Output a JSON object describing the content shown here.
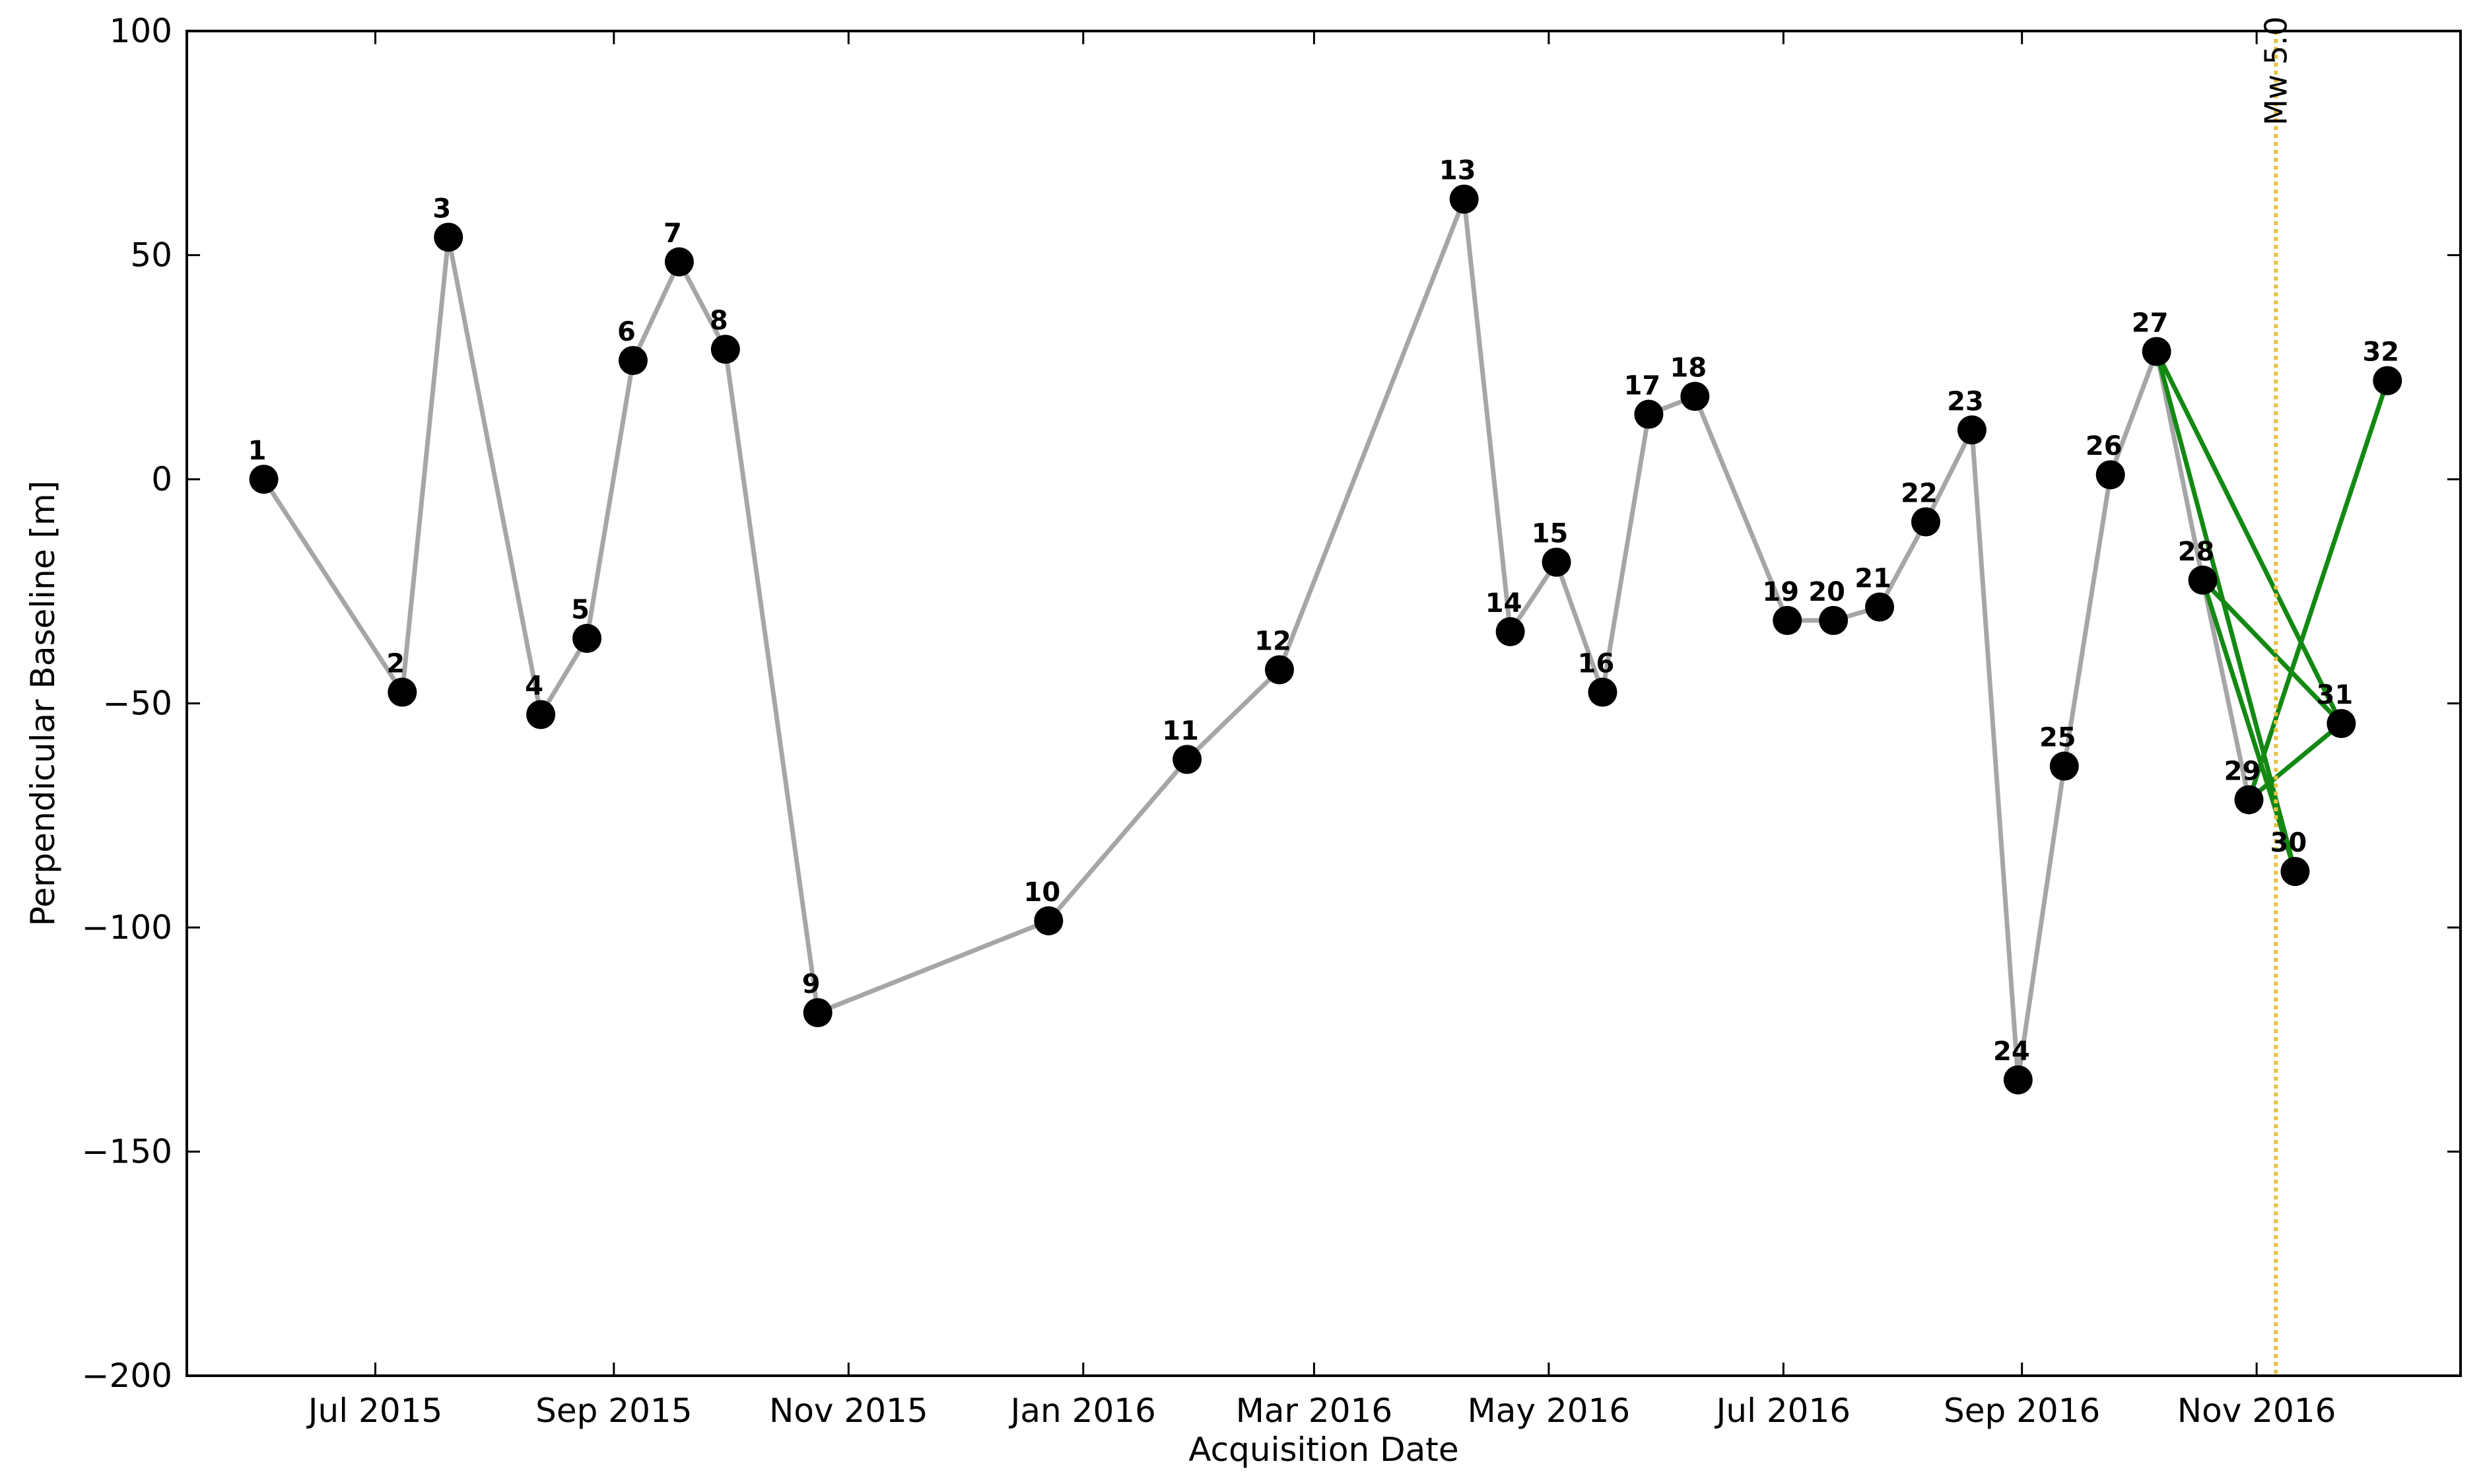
{
  "chart_data": {
    "type": "scatter",
    "title": "",
    "xlabel": "Acquisition Date",
    "ylabel": "Perpendicular Baseline [m]",
    "xlim": [
      "2015-05-13",
      "2016-12-24"
    ],
    "ylim": [
      -200,
      100
    ],
    "yticks": [
      100,
      50,
      0,
      -50,
      -100,
      -150,
      -200
    ],
    "ytick_labels": [
      "100",
      "50",
      "0",
      "−50",
      "−100",
      "−150",
      "−200"
    ],
    "xticks": [
      "2015-07-01",
      "2015-09-01",
      "2015-11-01",
      "2016-01-01",
      "2016-03-01",
      "2016-05-01",
      "2016-07-01",
      "2016-09-01",
      "2016-11-01"
    ],
    "xtick_labels": [
      "Jul 2015",
      "Sep 2015",
      "Nov 2015",
      "Jan 2016",
      "Mar 2016",
      "May 2016",
      "Jul 2016",
      "Sep 2016",
      "Nov 2016"
    ],
    "grid": false,
    "acquisitions": [
      {
        "id": "1",
        "date": "2015-06-02",
        "baseline": 0
      },
      {
        "id": "2",
        "date": "2015-07-08",
        "baseline": -47.5
      },
      {
        "id": "3",
        "date": "2015-07-20",
        "baseline": 54
      },
      {
        "id": "4",
        "date": "2015-08-13",
        "baseline": -52.5
      },
      {
        "id": "5",
        "date": "2015-08-25",
        "baseline": -35.5
      },
      {
        "id": "6",
        "date": "2015-09-06",
        "baseline": 26.5
      },
      {
        "id": "7",
        "date": "2015-09-18",
        "baseline": 48.5
      },
      {
        "id": "8",
        "date": "2015-09-30",
        "baseline": 29
      },
      {
        "id": "9",
        "date": "2015-10-24",
        "baseline": -119
      },
      {
        "id": "10",
        "date": "2015-12-23",
        "baseline": -98.5
      },
      {
        "id": "11",
        "date": "2016-01-28",
        "baseline": -62.5
      },
      {
        "id": "12",
        "date": "2016-02-21",
        "baseline": -42.5
      },
      {
        "id": "13",
        "date": "2016-04-09",
        "baseline": 62.5
      },
      {
        "id": "14",
        "date": "2016-04-21",
        "baseline": -34
      },
      {
        "id": "15",
        "date": "2016-05-03",
        "baseline": -18.5
      },
      {
        "id": "16",
        "date": "2016-05-15",
        "baseline": -47.5
      },
      {
        "id": "17",
        "date": "2016-05-27",
        "baseline": 14.5
      },
      {
        "id": "18",
        "date": "2016-06-08",
        "baseline": 18.5
      },
      {
        "id": "19",
        "date": "2016-07-02",
        "baseline": -31.5
      },
      {
        "id": "20",
        "date": "2016-07-14",
        "baseline": -31.5
      },
      {
        "id": "21",
        "date": "2016-07-26",
        "baseline": -28.5
      },
      {
        "id": "22",
        "date": "2016-08-07",
        "baseline": -9.5
      },
      {
        "id": "23",
        "date": "2016-08-19",
        "baseline": 11
      },
      {
        "id": "24",
        "date": "2016-08-31",
        "baseline": -134
      },
      {
        "id": "25",
        "date": "2016-09-12",
        "baseline": -64
      },
      {
        "id": "26",
        "date": "2016-09-24",
        "baseline": 1
      },
      {
        "id": "27",
        "date": "2016-10-06",
        "baseline": 28.5
      },
      {
        "id": "28",
        "date": "2016-10-18",
        "baseline": -22.5
      },
      {
        "id": "29",
        "date": "2016-10-30",
        "baseline": -71.5
      },
      {
        "id": "30",
        "date": "2016-11-11",
        "baseline": -87.5
      },
      {
        "id": "31",
        "date": "2016-11-23",
        "baseline": -54.5
      },
      {
        "id": "32",
        "date": "2016-12-05",
        "baseline": 22
      }
    ],
    "chain_connections": [
      [
        "1",
        "2"
      ],
      [
        "2",
        "3"
      ],
      [
        "3",
        "4"
      ],
      [
        "4",
        "5"
      ],
      [
        "5",
        "6"
      ],
      [
        "6",
        "7"
      ],
      [
        "7",
        "8"
      ],
      [
        "8",
        "9"
      ],
      [
        "9",
        "10"
      ],
      [
        "10",
        "11"
      ],
      [
        "11",
        "12"
      ],
      [
        "12",
        "13"
      ],
      [
        "13",
        "14"
      ],
      [
        "14",
        "15"
      ],
      [
        "15",
        "16"
      ],
      [
        "16",
        "17"
      ],
      [
        "17",
        "18"
      ],
      [
        "18",
        "19"
      ],
      [
        "19",
        "20"
      ],
      [
        "20",
        "21"
      ],
      [
        "21",
        "22"
      ],
      [
        "22",
        "23"
      ],
      [
        "23",
        "24"
      ],
      [
        "24",
        "25"
      ],
      [
        "25",
        "26"
      ],
      [
        "26",
        "27"
      ],
      [
        "27",
        "28"
      ],
      [
        "28",
        "29"
      ]
    ],
    "coseismic_connections": [
      [
        "27",
        "30"
      ],
      [
        "27",
        "31"
      ],
      [
        "28",
        "30"
      ],
      [
        "28",
        "31"
      ],
      [
        "29",
        "31"
      ],
      [
        "29",
        "32"
      ]
    ],
    "event": {
      "date": "2016-11-06",
      "label": "Mw 5.0"
    },
    "colors": {
      "chain_line": "#a6a6a6",
      "coseismic_line": "#138913",
      "marker": "#000000",
      "event_line": "#e6c341",
      "axes": "#000000"
    }
  }
}
